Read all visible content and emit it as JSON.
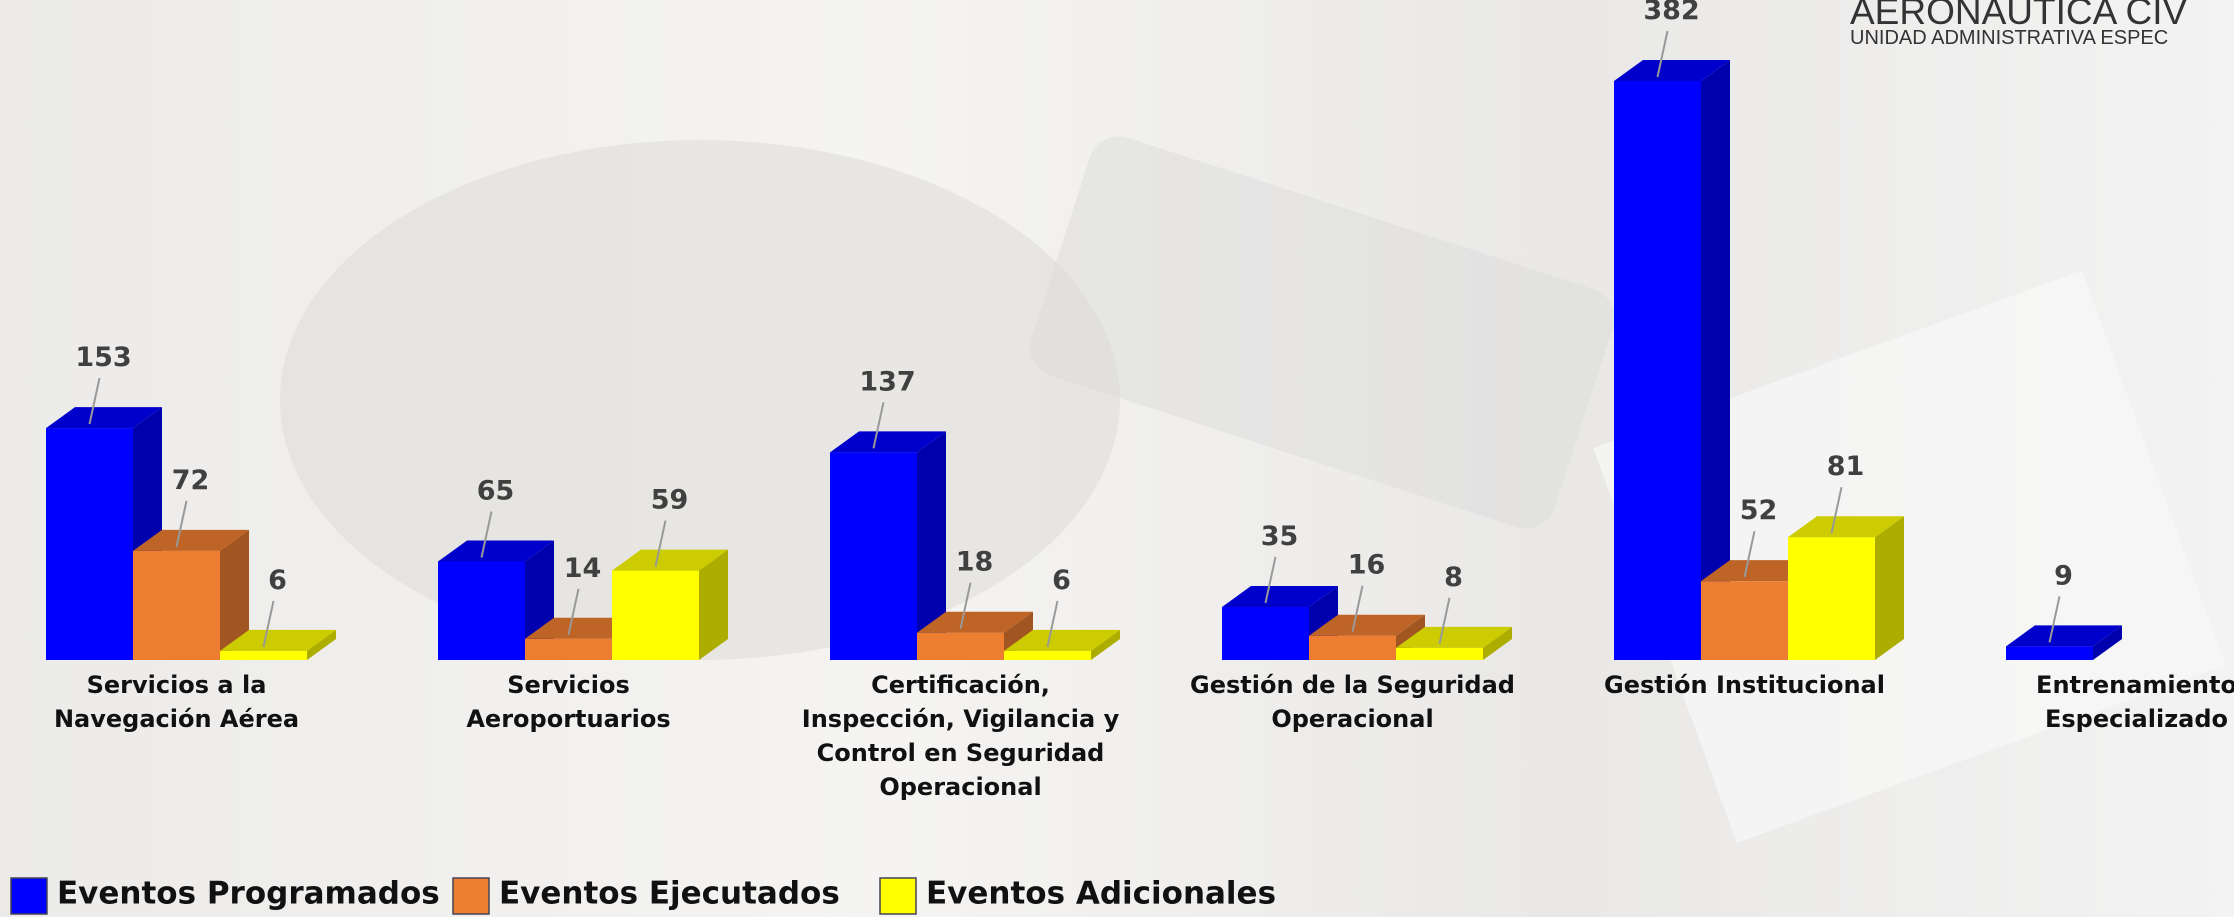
{
  "header": {
    "title": "AERONAUTICA CIV",
    "subtitle": "UNIDAD ADMINISTRATIVA ESPEC"
  },
  "chart_data": {
    "type": "bar3d",
    "categories": [
      "Servicios a la Navegación Aérea",
      "Servicios Aeroportuarios",
      "Certificación, Inspección, Vigilancia y Control en Seguridad Operacional",
      "Gestión de la Seguridad Operacional",
      "Gestión Institucional",
      "Entrenamiento Especializado"
    ],
    "series": [
      {
        "name": "Eventos Programados",
        "color": "#0000ff",
        "values": [
          153,
          65,
          137,
          35,
          382,
          9
        ]
      },
      {
        "name": "Eventos Ejecutados",
        "color": "#ed7d31",
        "values": [
          72,
          14,
          18,
          16,
          52,
          null
        ]
      },
      {
        "name": "Eventos Adicionales",
        "color": "#ffff00",
        "values": [
          6,
          59,
          6,
          8,
          81,
          null
        ]
      }
    ]
  }
}
